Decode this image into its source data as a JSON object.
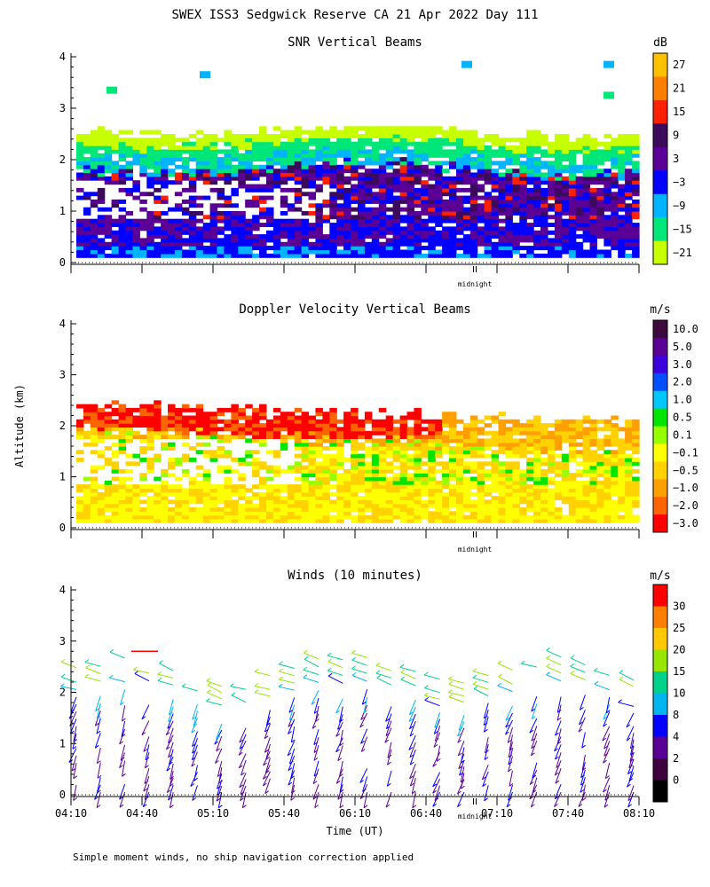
{
  "title": "SWEX ISS3 Sedgwick Reserve CA  21 Apr 2022 Day 111",
  "shared": {
    "ylabel": "Altitude (km)",
    "xlabel": "Time (UT)",
    "yticks": [
      "0",
      "1",
      "2",
      "3",
      "4"
    ],
    "xticks": [
      "04:10",
      "04:40",
      "05:10",
      "05:40",
      "06:10",
      "06:40",
      "07:10",
      "07:40",
      "08:10"
    ],
    "midnight_label": "midnight"
  },
  "footnote": "Simple moment winds, no ship navigation correction applied",
  "chart_data": [
    {
      "type": "heatmap",
      "title": "SNR Vertical Beams",
      "unit": "dB",
      "x_range": [
        "04:10",
        "08:10"
      ],
      "y_range": [
        0,
        4
      ],
      "colorbar": {
        "labels": [
          "27",
          "21",
          "15",
          "9",
          "3",
          "−3",
          "−9",
          "−15",
          "−21"
        ],
        "colors": [
          "#ffc000",
          "#ff8000",
          "#ff2000",
          "#3c0a5a",
          "#5a0096",
          "#0000ff",
          "#00b4ff",
          "#00e678",
          "#c8ff00"
        ]
      },
      "layers": [
        {
          "alt_range": [
            0.15,
            0.8
          ],
          "value": "-3 to 3 dB"
        },
        {
          "alt_range": [
            0.8,
            1.6
          ],
          "value": "3 to 15 dB"
        },
        {
          "alt_range": [
            1.6,
            2.0
          ],
          "value": "-9 to -3 dB"
        },
        {
          "alt_range": [
            2.0,
            2.4
          ],
          "value": "-15 to -9 dB"
        },
        {
          "alt_range": [
            2.4,
            2.7
          ],
          "value": "-21 to -15 dB"
        }
      ]
    },
    {
      "type": "heatmap",
      "title": "Doppler Velocity Vertical Beams",
      "unit": "m/s",
      "x_range": [
        "04:10",
        "08:10"
      ],
      "y_range": [
        0,
        4
      ],
      "colorbar": {
        "labels": [
          "10.0",
          "5.0",
          "3.0",
          "2.0",
          "1.0",
          "0.5",
          "0.1",
          "−0.1",
          "−0.5",
          "−1.0",
          "−2.0",
          "−3.0"
        ],
        "colors": [
          "#3c0a3c",
          "#5a0096",
          "#3c00dc",
          "#0050ff",
          "#00c8ff",
          "#00e600",
          "#96ff00",
          "#ffff00",
          "#ffd200",
          "#ffa000",
          "#ff6400",
          "#ff0000"
        ]
      },
      "layers": [
        {
          "alt_range": [
            0.1,
            0.8
          ],
          "value": "-0.1 to -1.0 m/s"
        },
        {
          "alt_range": [
            0.8,
            1.7
          ],
          "value": "-0.1 to 0.5 m/s"
        },
        {
          "alt_range": [
            1.7,
            2.4
          ],
          "value": "-1.0 to -3.0 m/s"
        }
      ]
    },
    {
      "type": "wind-barbs",
      "title": "Winds (10 minutes)",
      "unit": "m/s",
      "x_range": [
        "04:10",
        "08:10"
      ],
      "y_range": [
        0,
        4
      ],
      "colorbar": {
        "labels": [
          "30",
          "25",
          "20",
          "15",
          "10",
          "8",
          "4",
          "2",
          "0"
        ],
        "colors": [
          "#ff0000",
          "#ff8000",
          "#ffc800",
          "#96e600",
          "#00d28c",
          "#00b4f0",
          "#0000ff",
          "#5a0096",
          "#3c003c",
          "#000000"
        ]
      }
    }
  ]
}
